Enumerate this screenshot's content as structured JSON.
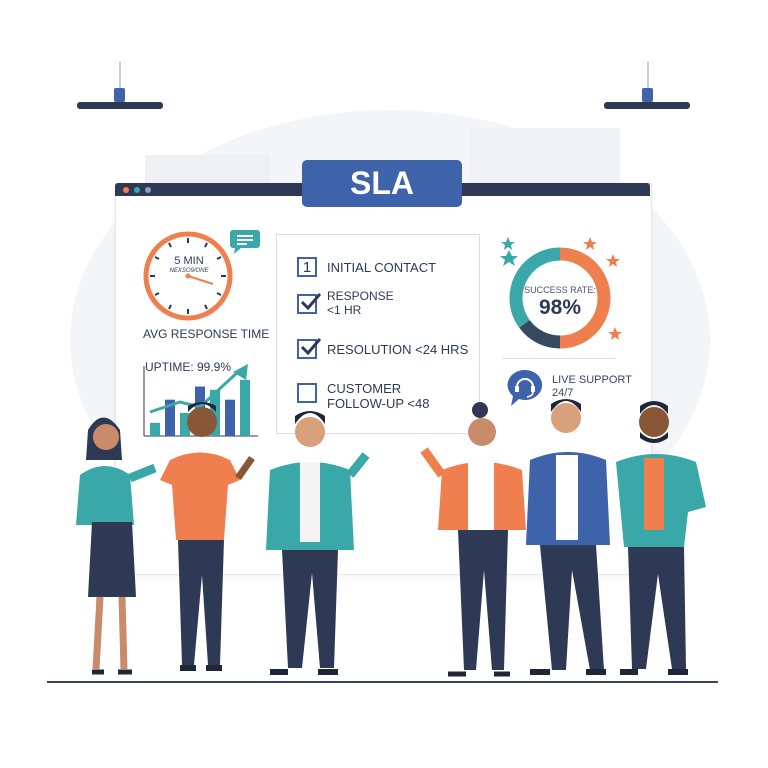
{
  "board": {
    "title": "SLA"
  },
  "response_widget": {
    "clock_value": "5 MIN",
    "clock_subtext": "NEXSO9/ONE",
    "label": "AVG RESPONSE TIME",
    "chat-icon": "speech-bubble-icon"
  },
  "uptime": {
    "label": "UPTIME: 99.9%",
    "bars": [
      0.2,
      0.55,
      0.35,
      0.75,
      0.7,
      0.55,
      0.85
    ],
    "trend": "up-arrow-icon"
  },
  "checklist": {
    "items": [
      {
        "marker": "1",
        "label": "INITIAL CONTACT",
        "checked": false
      },
      {
        "label": "RESPONSE",
        "sub": "<1 HR",
        "checked": true
      },
      {
        "label": "RESOLUTION <24 HRS",
        "checked": true
      },
      {
        "label": "CUSTOMER",
        "sub": "FOLLOW-UP <48",
        "checked": false
      }
    ]
  },
  "success": {
    "label": "SUCCESS RATE:",
    "value": "98%",
    "segments": [
      {
        "color": "#f07f4f",
        "fraction": 0.5
      },
      {
        "color": "#35495f",
        "fraction": 0.15
      },
      {
        "color": "#3aa7a9",
        "fraction": 0.35
      }
    ]
  },
  "support": {
    "label": "LIVE SUPPORT",
    "sub": "24/7",
    "icon": "headset-icon"
  },
  "colors": {
    "navy": "#2e3a55",
    "blue": "#3f63ab",
    "teal": "#3aa7a9",
    "orange": "#f07f4f"
  }
}
